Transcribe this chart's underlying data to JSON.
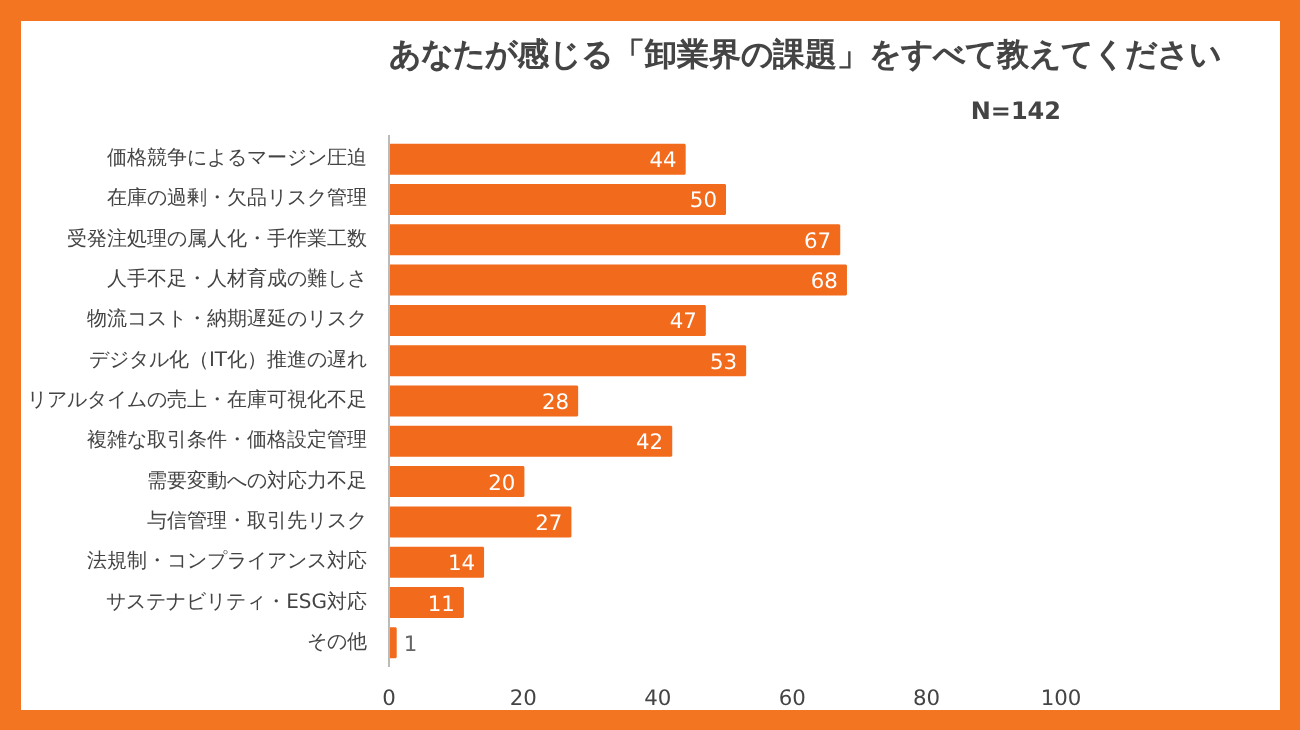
{
  "chart_data": {
    "type": "bar",
    "orientation": "horizontal",
    "title": "あなたが感じる「卸業界の課題」をすべて教えてください",
    "annotations": [
      "N=142"
    ],
    "categories": [
      "価格競争によるマージン圧迫",
      "在庫の過剰・欠品リスク管理",
      "受発注処理の属人化・手作業工数",
      "人手不足・人材育成の難しさ",
      "物流コスト・納期遅延のリスク",
      "デジタル化（IT化）推進の遅れ",
      "リアルタイムの売上・在庫可視化不足",
      "複雑な取引条件・価格設定管理",
      "需要変動への対応力不足",
      "与信管理・取引先リスク",
      "法規制・コンプライアンス対応",
      "サステナビリティ・ESG対応",
      "その他"
    ],
    "values": [
      44,
      50,
      67,
      68,
      47,
      53,
      28,
      42,
      20,
      27,
      14,
      11,
      1
    ],
    "color": "#f26b1d",
    "xlim": [
      0,
      100
    ],
    "xticks": [
      0,
      20,
      40,
      60,
      80,
      100
    ],
    "data_labels": true,
    "grid": false
  }
}
